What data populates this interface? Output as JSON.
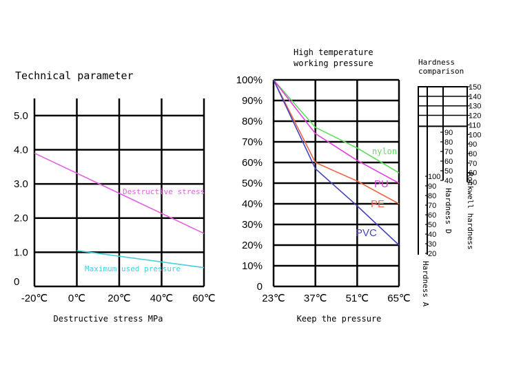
{
  "page_title": "Technical parameter",
  "chart_data": [
    {
      "type": "line",
      "title": "",
      "xlabel": "Destructive stress MPa",
      "ylabel": "",
      "categories": [
        "-20℃",
        "0℃",
        "20℃",
        "40℃",
        "60℃"
      ],
      "x": [
        -20,
        0,
        20,
        40,
        60
      ],
      "xlim": [
        -20,
        60
      ],
      "y_ticks": [
        "0",
        "1.0",
        "2.0",
        "3.0",
        "4.0",
        "5.0"
      ],
      "ylim": [
        0,
        5.5
      ],
      "grid": true,
      "series": [
        {
          "name": "Destructive stress",
          "color": "#e060e0",
          "x": [
            -20,
            60
          ],
          "y": [
            3.9,
            1.55
          ]
        },
        {
          "name": "Maximum used pressure",
          "color": "#40d0e0",
          "x": [
            0,
            60
          ],
          "y": [
            1.05,
            0.55
          ]
        }
      ]
    },
    {
      "type": "line",
      "title": "High temperature working pressure",
      "title_lines": [
        "High temperature",
        "working pressure"
      ],
      "xlabel": "Keep the pressure",
      "ylabel": "",
      "categories": [
        "23℃",
        "37℃",
        "51℃",
        "65℃"
      ],
      "x": [
        23,
        37,
        51,
        65
      ],
      "xlim": [
        23,
        65
      ],
      "y_ticks": [
        "0",
        "10%",
        "20%",
        "30%",
        "40%",
        "50%",
        "60%",
        "70%",
        "80%",
        "90%",
        "100%"
      ],
      "ylim": [
        0,
        100
      ],
      "grid": true,
      "series": [
        {
          "name": "nylon",
          "color": "#60dd60",
          "x": [
            23,
            37,
            51,
            65
          ],
          "y": [
            100,
            77,
            67,
            55
          ]
        },
        {
          "name": "PU",
          "color": "#dd44dd",
          "x": [
            23,
            37,
            51,
            65
          ],
          "y": [
            100,
            74,
            61,
            50
          ]
        },
        {
          "name": "PE",
          "color": "#ee6644",
          "x": [
            23,
            37,
            51,
            65
          ],
          "y": [
            100,
            60,
            51,
            40
          ]
        },
        {
          "name": "PVC",
          "color": "#4444bb",
          "x": [
            23,
            37,
            51,
            65
          ],
          "y": [
            100,
            57,
            39,
            20
          ]
        }
      ]
    },
    {
      "type": "scale",
      "title": "Hardness comparison",
      "title_lines": [
        "Hardness",
        "comparison"
      ],
      "scales": [
        {
          "name": "Rockwell hardness",
          "ticks": [
            "150",
            "140",
            "130",
            "120",
            "110",
            "100",
            "90",
            "80",
            "70",
            "60",
            "50"
          ]
        },
        {
          "name": "Hardness D",
          "ticks": [
            "90",
            "80",
            "70",
            "60",
            "50",
            "40"
          ]
        },
        {
          "name": "Hardness A",
          "ticks": [
            "100",
            "90",
            "80",
            "70",
            "60",
            "50",
            "40",
            "30",
            "20"
          ]
        }
      ]
    }
  ]
}
